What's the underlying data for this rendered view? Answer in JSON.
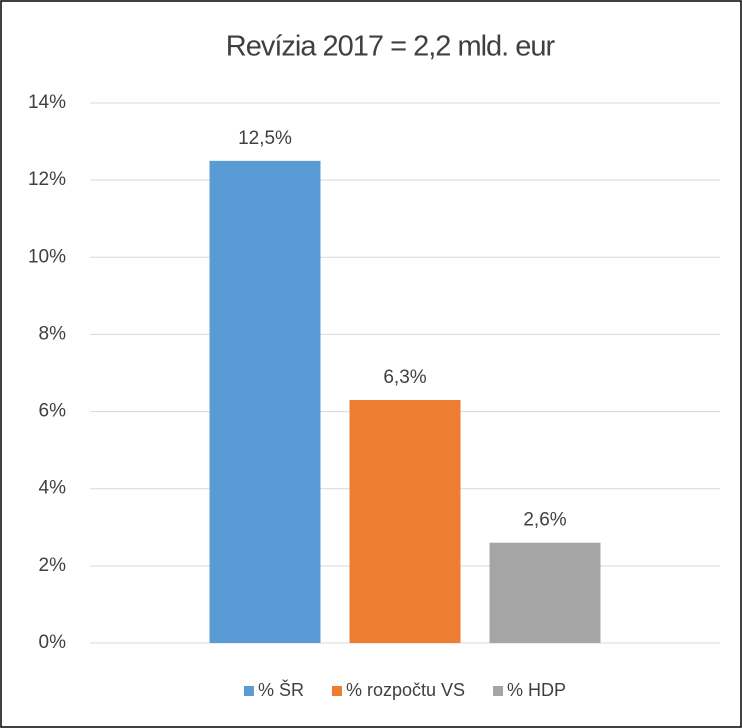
{
  "chart_data": {
    "type": "bar",
    "title": "Revízia 2017 = 2,2 mld. eur",
    "categories": [
      null
    ],
    "series": [
      {
        "name": "% ŠR",
        "color": "#5b9bd5",
        "values": [
          12.5
        ],
        "value_labels": [
          "12,5%"
        ]
      },
      {
        "name": "% rozpočtu VS",
        "color": "#ed7d31",
        "values": [
          6.3
        ],
        "value_labels": [
          "6,3%"
        ]
      },
      {
        "name": "% HDP",
        "color": "#a5a5a5",
        "values": [
          2.6
        ],
        "value_labels": [
          "2,6%"
        ]
      }
    ],
    "ylim": [
      0,
      14
    ],
    "yticks": [
      {
        "value": 0,
        "label": "0%"
      },
      {
        "value": 2,
        "label": "2%"
      },
      {
        "value": 4,
        "label": "4%"
      },
      {
        "value": 6,
        "label": "6%"
      },
      {
        "value": 8,
        "label": "8%"
      },
      {
        "value": 10,
        "label": "10%"
      },
      {
        "value": 12,
        "label": "12%"
      },
      {
        "value": 14,
        "label": "14%"
      }
    ],
    "grid": true,
    "legend": "bottom"
  }
}
